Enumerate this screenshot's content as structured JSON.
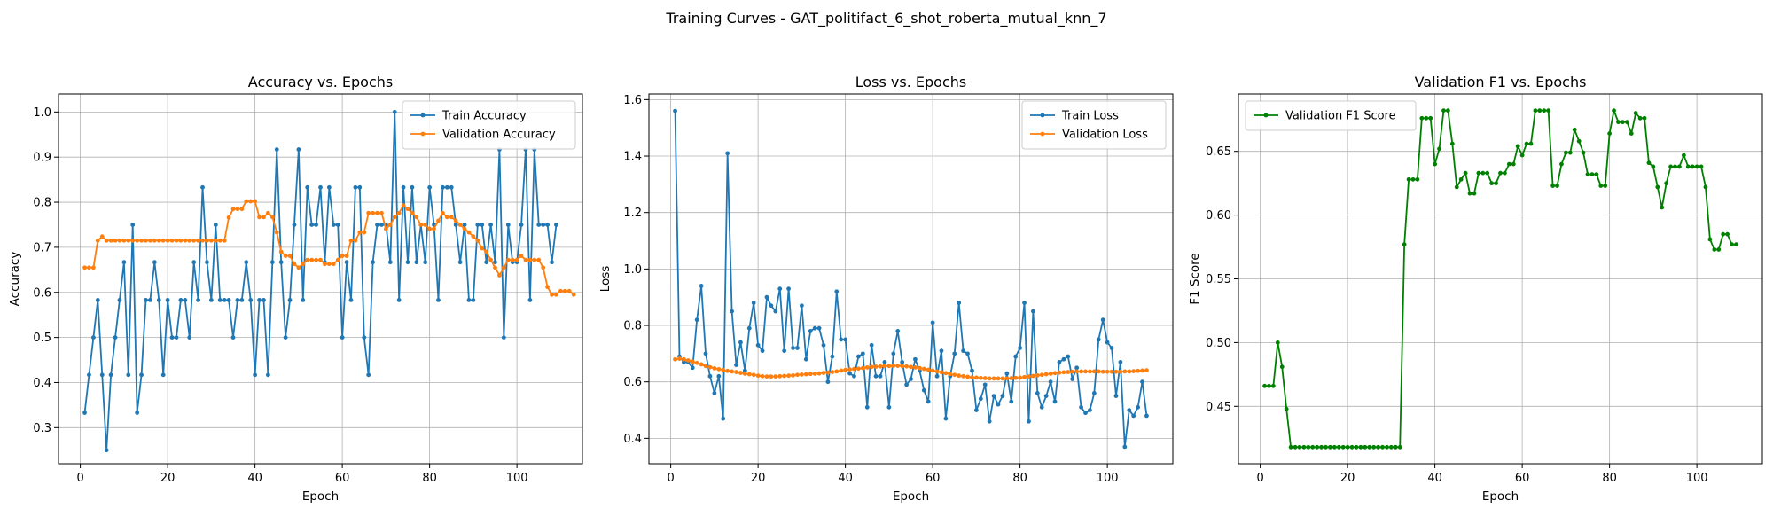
{
  "figure_title": "Training Curves - GAT_politifact_6_shot_roberta_mutual_knn_7",
  "chart_data": [
    {
      "type": "line",
      "title": "Accuracy vs. Epochs",
      "xlabel": "Epoch",
      "ylabel": "Accuracy",
      "xlim": [
        -5,
        115
      ],
      "ylim": [
        0.22,
        1.04
      ],
      "xticks": [
        0,
        20,
        40,
        60,
        80,
        100
      ],
      "yticks": [
        0.3,
        0.4,
        0.5,
        0.6,
        0.7,
        0.8,
        0.9,
        1.0
      ],
      "ytick_labels": [
        "0.3",
        "0.4",
        "0.5",
        "0.6",
        "0.7",
        "0.8",
        "0.9",
        "1.0"
      ],
      "grid": true,
      "legend_position": "upper-right",
      "series": [
        {
          "name": "Train Accuracy",
          "color": "#1f77b4",
          "values": [
            0.333,
            0.417,
            0.5,
            0.583,
            0.417,
            0.25,
            0.417,
            0.5,
            0.583,
            0.667,
            0.417,
            0.75,
            0.333,
            0.417,
            0.583,
            0.583,
            0.667,
            0.583,
            0.417,
            0.583,
            0.5,
            0.5,
            0.583,
            0.583,
            0.5,
            0.667,
            0.583,
            0.833,
            0.667,
            0.583,
            0.75,
            0.583,
            0.583,
            0.583,
            0.5,
            0.583,
            0.583,
            0.667,
            0.583,
            0.417,
            0.583,
            0.583,
            0.417,
            0.667,
            0.917,
            0.667,
            0.5,
            0.583,
            0.75,
            0.917,
            0.583,
            0.833,
            0.75,
            0.75,
            0.833,
            0.667,
            0.833,
            0.75,
            0.75,
            0.5,
            0.667,
            0.583,
            0.833,
            0.833,
            0.5,
            0.417,
            0.667,
            0.75,
            0.75,
            0.75,
            0.667,
            1.0,
            0.583,
            0.833,
            0.667,
            0.833,
            0.667,
            0.75,
            0.667,
            0.833,
            0.75,
            0.583,
            0.833,
            0.833,
            0.833,
            0.75,
            0.667,
            0.75,
            0.583,
            0.583,
            0.75,
            0.75,
            0.667,
            0.75,
            0.667,
            0.917,
            0.5,
            0.75,
            0.667,
            0.667,
            0.75,
            0.917,
            0.583,
            0.917,
            0.75,
            0.75,
            0.75,
            0.667,
            0.75
          ]
        },
        {
          "name": "Validation Accuracy",
          "color": "#ff7f0e",
          "values": [
            0.655,
            0.655,
            0.655,
            0.715,
            0.724,
            0.715,
            0.715,
            0.715,
            0.715,
            0.715,
            0.715,
            0.715,
            0.715,
            0.715,
            0.715,
            0.715,
            0.715,
            0.715,
            0.715,
            0.715,
            0.715,
            0.715,
            0.715,
            0.715,
            0.715,
            0.715,
            0.715,
            0.715,
            0.715,
            0.715,
            0.715,
            0.715,
            0.715,
            0.766,
            0.785,
            0.785,
            0.785,
            0.802,
            0.802,
            0.802,
            0.767,
            0.767,
            0.776,
            0.767,
            0.733,
            0.69,
            0.681,
            0.681,
            0.663,
            0.655,
            0.663,
            0.672,
            0.672,
            0.672,
            0.672,
            0.663,
            0.663,
            0.663,
            0.672,
            0.681,
            0.681,
            0.715,
            0.715,
            0.733,
            0.733,
            0.776,
            0.776,
            0.776,
            0.776,
            0.741,
            0.75,
            0.767,
            0.776,
            0.793,
            0.785,
            0.776,
            0.767,
            0.75,
            0.75,
            0.741,
            0.741,
            0.759,
            0.776,
            0.767,
            0.767,
            0.759,
            0.75,
            0.741,
            0.733,
            0.724,
            0.715,
            0.698,
            0.69,
            0.672,
            0.655,
            0.638,
            0.655,
            0.672,
            0.672,
            0.672,
            0.681,
            0.672,
            0.672,
            0.672,
            0.672,
            0.655,
            0.612,
            0.595,
            0.595,
            0.603,
            0.603,
            0.603,
            0.595
          ]
        }
      ]
    },
    {
      "type": "line",
      "title": "Loss vs. Epochs",
      "xlabel": "Epoch",
      "ylabel": "Loss",
      "xlim": [
        -5,
        115
      ],
      "ylim": [
        0.31,
        1.62
      ],
      "xticks": [
        0,
        20,
        40,
        60,
        80,
        100
      ],
      "yticks": [
        0.4,
        0.6,
        0.8,
        1.0,
        1.2,
        1.4,
        1.6
      ],
      "ytick_labels": [
        "0.4",
        "0.6",
        "0.8",
        "1.0",
        "1.2",
        "1.4",
        "1.6"
      ],
      "grid": true,
      "legend_position": "upper-right",
      "series": [
        {
          "name": "Train Loss",
          "color": "#1f77b4",
          "values": [
            1.56,
            0.69,
            0.67,
            0.67,
            0.65,
            0.82,
            0.94,
            0.7,
            0.62,
            0.56,
            0.62,
            0.47,
            1.41,
            0.85,
            0.66,
            0.74,
            0.64,
            0.79,
            0.88,
            0.73,
            0.71,
            0.9,
            0.87,
            0.85,
            0.93,
            0.71,
            0.93,
            0.72,
            0.72,
            0.87,
            0.68,
            0.78,
            0.79,
            0.79,
            0.73,
            0.6,
            0.69,
            0.92,
            0.75,
            0.75,
            0.63,
            0.62,
            0.69,
            0.7,
            0.51,
            0.73,
            0.62,
            0.62,
            0.67,
            0.51,
            0.7,
            0.78,
            0.67,
            0.59,
            0.61,
            0.68,
            0.64,
            0.57,
            0.53,
            0.81,
            0.62,
            0.71,
            0.47,
            0.62,
            0.7,
            0.88,
            0.71,
            0.7,
            0.64,
            0.5,
            0.54,
            0.59,
            0.46,
            0.55,
            0.52,
            0.55,
            0.63,
            0.53,
            0.69,
            0.72,
            0.88,
            0.46,
            0.85,
            0.56,
            0.51,
            0.55,
            0.6,
            0.53,
            0.67,
            0.68,
            0.69,
            0.61,
            0.65,
            0.51,
            0.49,
            0.5,
            0.56,
            0.75,
            0.82,
            0.74,
            0.72,
            0.55,
            0.67,
            0.37,
            0.5,
            0.48,
            0.51,
            0.6,
            0.48
          ]
        },
        {
          "name": "Validation Loss",
          "color": "#ff7f0e",
          "values": [
            0.68,
            0.682,
            0.68,
            0.676,
            0.672,
            0.667,
            0.662,
            0.656,
            0.652,
            0.648,
            0.645,
            0.642,
            0.639,
            0.637,
            0.635,
            0.632,
            0.629,
            0.627,
            0.625,
            0.622,
            0.62,
            0.619,
            0.619,
            0.619,
            0.62,
            0.621,
            0.622,
            0.623,
            0.625,
            0.626,
            0.627,
            0.628,
            0.629,
            0.63,
            0.632,
            0.633,
            0.635,
            0.637,
            0.64,
            0.642,
            0.644,
            0.646,
            0.647,
            0.649,
            0.651,
            0.653,
            0.654,
            0.655,
            0.656,
            0.656,
            0.657,
            0.657,
            0.656,
            0.655,
            0.653,
            0.651,
            0.649,
            0.646,
            0.643,
            0.64,
            0.637,
            0.634,
            0.631,
            0.628,
            0.625,
            0.622,
            0.62,
            0.618,
            0.616,
            0.615,
            0.614,
            0.613,
            0.612,
            0.612,
            0.612,
            0.612,
            0.612,
            0.613,
            0.614,
            0.615,
            0.617,
            0.619,
            0.621,
            0.623,
            0.625,
            0.627,
            0.629,
            0.631,
            0.633,
            0.634,
            0.635,
            0.636,
            0.637,
            0.637,
            0.637,
            0.637,
            0.637,
            0.637,
            0.636,
            0.636,
            0.636,
            0.636,
            0.636,
            0.637,
            0.637,
            0.638,
            0.639,
            0.64,
            0.641
          ]
        }
      ]
    },
    {
      "type": "line",
      "title": "Validation F1 vs. Epochs",
      "xlabel": "Epoch",
      "ylabel": "F1 Score",
      "xlim": [
        -5,
        115
      ],
      "ylim": [
        0.405,
        0.695
      ],
      "xticks": [
        0,
        20,
        40,
        60,
        80,
        100
      ],
      "yticks": [
        0.45,
        0.5,
        0.55,
        0.6,
        0.65
      ],
      "ytick_labels": [
        "0.45",
        "0.50",
        "0.55",
        "0.60",
        "0.65"
      ],
      "grid": true,
      "legend_position": "upper-left",
      "series": [
        {
          "name": "Validation F1 Score",
          "color": "#008000",
          "values": [
            0.466,
            0.466,
            0.466,
            0.5,
            0.481,
            0.448,
            0.418,
            0.418,
            0.418,
            0.418,
            0.418,
            0.418,
            0.418,
            0.418,
            0.418,
            0.418,
            0.418,
            0.418,
            0.418,
            0.418,
            0.418,
            0.418,
            0.418,
            0.418,
            0.418,
            0.418,
            0.418,
            0.418,
            0.418,
            0.418,
            0.418,
            0.418,
            0.577,
            0.628,
            0.628,
            0.628,
            0.676,
            0.676,
            0.676,
            0.64,
            0.652,
            0.682,
            0.682,
            0.656,
            0.622,
            0.628,
            0.633,
            0.617,
            0.617,
            0.633,
            0.633,
            0.633,
            0.625,
            0.625,
            0.633,
            0.633,
            0.64,
            0.64,
            0.654,
            0.647,
            0.656,
            0.656,
            0.682,
            0.682,
            0.682,
            0.682,
            0.623,
            0.623,
            0.64,
            0.649,
            0.649,
            0.667,
            0.658,
            0.649,
            0.632,
            0.632,
            0.632,
            0.623,
            0.623,
            0.664,
            0.682,
            0.673,
            0.673,
            0.673,
            0.664,
            0.68,
            0.676,
            0.676,
            0.641,
            0.638,
            0.622,
            0.606,
            0.625,
            0.638,
            0.638,
            0.638,
            0.647,
            0.638,
            0.638,
            0.638,
            0.638,
            0.622,
            0.581,
            0.573,
            0.573,
            0.585,
            0.585,
            0.577,
            0.577
          ]
        }
      ]
    }
  ]
}
